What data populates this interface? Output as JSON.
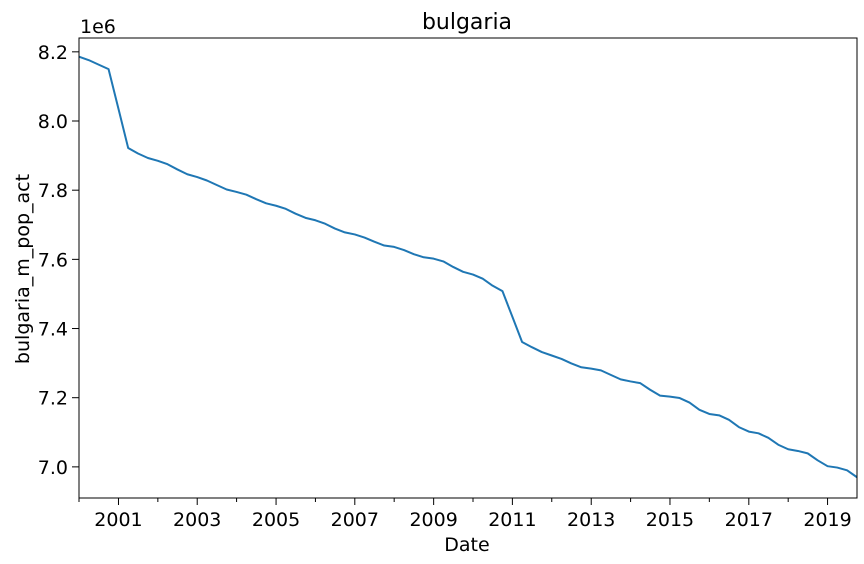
{
  "chart_data": {
    "type": "line",
    "title": "bulgaria",
    "xlabel": "Date",
    "ylabel": "bulgaria_m_pop_act",
    "y_offset_label": "1e6",
    "xlim": [
      "2000-01-01",
      "2019-10-01"
    ],
    "ylim": [
      6910000,
      8240000
    ],
    "x_major_ticks": [
      "2001-01-01",
      "2003-01-01",
      "2005-01-01",
      "2007-01-01",
      "2009-01-01",
      "2011-01-01",
      "2013-01-01",
      "2015-01-01",
      "2017-01-01",
      "2019-01-01"
    ],
    "x_major_tick_labels": [
      "2001",
      "2003",
      "2005",
      "2007",
      "2009",
      "2011",
      "2013",
      "2015",
      "2017",
      "2019"
    ],
    "x_minor_ticks": [
      "2000-01-01",
      "2002-01-01",
      "2004-01-01",
      "2006-01-01",
      "2008-01-01",
      "2010-01-01",
      "2012-01-01",
      "2014-01-01",
      "2016-01-01",
      "2018-01-01"
    ],
    "y_ticks": [
      7000000,
      7200000,
      7400000,
      7600000,
      7800000,
      8000000,
      8200000
    ],
    "y_tick_labels": [
      "7.0",
      "7.2",
      "7.4",
      "7.6",
      "7.8",
      "8.0",
      "8.2"
    ],
    "grid": false,
    "legend": "none",
    "color": "#1f77b4",
    "series": [
      {
        "x": [
          "2000-01-01",
          "2000-04-01",
          "2000-07-01",
          "2000-10-01",
          "2001-01-01",
          "2001-04-01",
          "2001-07-01",
          "2001-10-01",
          "2002-01-01",
          "2002-04-01",
          "2002-07-01",
          "2002-10-01",
          "2003-01-01",
          "2003-04-01",
          "2003-07-01",
          "2003-10-01",
          "2004-01-01",
          "2004-04-01",
          "2004-07-01",
          "2004-10-01",
          "2005-01-01",
          "2005-04-01",
          "2005-07-01",
          "2005-10-01",
          "2006-01-01",
          "2006-04-01",
          "2006-07-01",
          "2006-10-01",
          "2007-01-01",
          "2007-04-01",
          "2007-07-01",
          "2007-10-01",
          "2008-01-01",
          "2008-04-01",
          "2008-07-01",
          "2008-10-01",
          "2009-01-01",
          "2009-04-01",
          "2009-07-01",
          "2009-10-01",
          "2010-01-01",
          "2010-04-01",
          "2010-07-01",
          "2010-10-01",
          "2011-01-01",
          "2011-04-01",
          "2011-07-01",
          "2011-10-01",
          "2012-01-01",
          "2012-04-01",
          "2012-07-01",
          "2012-10-01",
          "2013-01-01",
          "2013-04-01",
          "2013-07-01",
          "2013-10-01",
          "2014-01-01",
          "2014-04-01",
          "2014-07-01",
          "2014-10-01",
          "2015-01-01",
          "2015-04-01",
          "2015-07-01",
          "2015-10-01",
          "2016-01-01",
          "2016-04-01",
          "2016-07-01",
          "2016-10-01",
          "2017-01-01",
          "2017-04-01",
          "2017-07-01",
          "2017-10-01",
          "2018-01-01",
          "2018-04-01",
          "2018-07-01",
          "2018-10-01",
          "2019-01-01",
          "2019-04-01",
          "2019-07-01",
          "2019-10-01"
        ],
        "values": [
          8186000,
          8176000,
          8163000,
          8150000,
          8035000,
          7922000,
          7906000,
          7893000,
          7885000,
          7875000,
          7860000,
          7846000,
          7838000,
          7828000,
          7815000,
          7802000,
          7795000,
          7787000,
          7774000,
          7762000,
          7755000,
          7746000,
          7732000,
          7720000,
          7713000,
          7703000,
          7689000,
          7678000,
          7672000,
          7663000,
          7651000,
          7640000,
          7636000,
          7627000,
          7615000,
          7606000,
          7602000,
          7594000,
          7578000,
          7564000,
          7556000,
          7544000,
          7524000,
          7508000,
          7434000,
          7361000,
          7346000,
          7332000,
          7322000,
          7312000,
          7299000,
          7288000,
          7284000,
          7279000,
          7266000,
          7253000,
          7247000,
          7242000,
          7223000,
          7206000,
          7203000,
          7199000,
          7186000,
          7165000,
          7153000,
          7149000,
          7136000,
          7115000,
          7102000,
          7097000,
          7084000,
          7064000,
          7051000,
          7046000,
          7039000,
          7019000,
          7002000,
          6998000,
          6990000,
          6970000
        ]
      }
    ]
  }
}
